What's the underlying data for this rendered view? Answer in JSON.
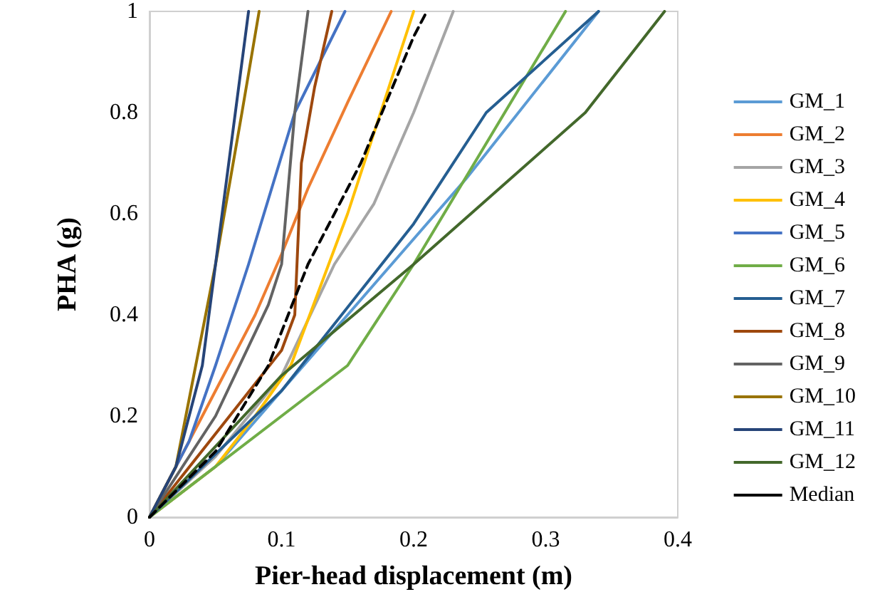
{
  "chart_data": {
    "type": "line",
    "xlabel": "Pier-head displacement (m)",
    "ylabel": "PHA (g)",
    "xlim": [
      0,
      0.4
    ],
    "xticks": [
      0,
      0.1,
      0.2,
      0.3,
      0.4
    ],
    "ylim": [
      0,
      1
    ],
    "yticks": [
      0,
      0.2,
      0.4,
      0.6,
      0.8,
      1
    ],
    "grid": false,
    "legend": "right",
    "marker": "none",
    "series": [
      {
        "name": "GM_1",
        "color": "#5b9bd5",
        "x": [
          0,
          0.05,
          0.1,
          0.15,
          0.2,
          0.24,
          0.34
        ],
        "values": [
          0,
          0.1,
          0.25,
          0.4,
          0.55,
          0.67,
          1
        ]
      },
      {
        "name": "GM_2",
        "color": "#ed7d31",
        "x": [
          0,
          0.02,
          0.04,
          0.06,
          0.08,
          0.1,
          0.12,
          0.15,
          0.183
        ],
        "values": [
          0,
          0.1,
          0.2,
          0.3,
          0.4,
          0.52,
          0.65,
          0.82,
          1
        ]
      },
      {
        "name": "GM_3",
        "color": "#a5a5a5",
        "x": [
          0,
          0.05,
          0.1,
          0.14,
          0.17,
          0.2,
          0.23
        ],
        "values": [
          0,
          0.12,
          0.28,
          0.5,
          0.62,
          0.8,
          1
        ]
      },
      {
        "name": "GM_4",
        "color": "#ffc000",
        "x": [
          0,
          0.05,
          0.08,
          0.107,
          0.15,
          0.2
        ],
        "values": [
          0,
          0.1,
          0.2,
          0.3,
          0.6,
          1
        ]
      },
      {
        "name": "GM_5",
        "color": "#4472c4",
        "x": [
          0,
          0.03,
          0.05,
          0.065,
          0.075,
          0.11,
          0.148
        ],
        "values": [
          0,
          0.15,
          0.3,
          0.42,
          0.5,
          0.8,
          1
        ]
      },
      {
        "name": "GM_6",
        "color": "#70ad47",
        "x": [
          0,
          0.15,
          0.2,
          0.315
        ],
        "values": [
          0,
          0.3,
          0.5,
          1
        ]
      },
      {
        "name": "GM_7",
        "color": "#255e91",
        "x": [
          0,
          0.1,
          0.2,
          0.255,
          0.34
        ],
        "values": [
          0,
          0.25,
          0.58,
          0.8,
          1
        ]
      },
      {
        "name": "GM_8",
        "color": "#9e480e",
        "x": [
          0,
          0.1,
          0.11,
          0.115,
          0.125,
          0.138
        ],
        "values": [
          0,
          0.33,
          0.4,
          0.7,
          0.85,
          1
        ]
      },
      {
        "name": "GM_9",
        "color": "#636363",
        "x": [
          0,
          0.05,
          0.09,
          0.1,
          0.11,
          0.12
        ],
        "values": [
          0,
          0.2,
          0.42,
          0.5,
          0.8,
          1
        ]
      },
      {
        "name": "GM_10",
        "color": "#997300",
        "x": [
          0,
          0.02,
          0.035,
          0.05,
          0.07,
          0.083
        ],
        "values": [
          0,
          0.1,
          0.3,
          0.5,
          0.8,
          1
        ]
      },
      {
        "name": "GM_11",
        "color": "#264478",
        "x": [
          0,
          0.02,
          0.04,
          0.05,
          0.075
        ],
        "values": [
          0,
          0.1,
          0.3,
          0.5,
          1
        ]
      },
      {
        "name": "GM_12",
        "color": "#43682b",
        "x": [
          0,
          0.1,
          0.2,
          0.33,
          0.39
        ],
        "values": [
          0,
          0.28,
          0.5,
          0.8,
          1
        ]
      },
      {
        "name": "Median",
        "color": "#000000",
        "line_style": "dashed",
        "x": [
          0,
          0.05,
          0.09,
          0.12,
          0.16,
          0.2,
          0.21
        ],
        "values": [
          0,
          0.13,
          0.3,
          0.5,
          0.7,
          0.95,
          1
        ]
      }
    ]
  }
}
